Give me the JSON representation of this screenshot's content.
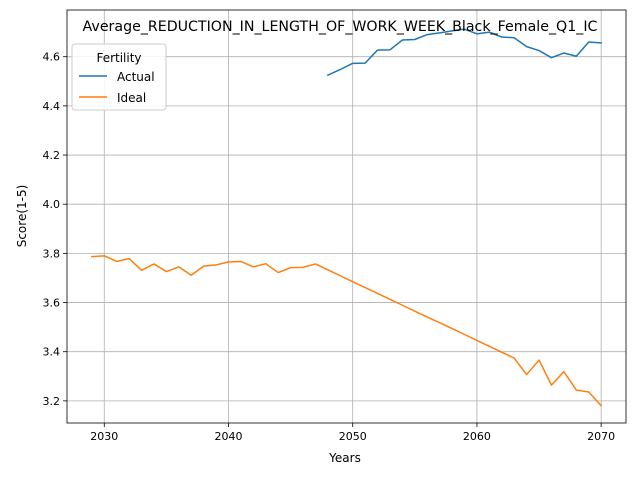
{
  "chart_data": {
    "type": "line",
    "title": "Average_REDUCTION_IN_LENGTH_OF_WORK_WEEK_Black_Female_Q1_IC",
    "xlabel": "Years",
    "ylabel": "Score(1-5)",
    "xlim": [
      2027,
      2072
    ],
    "ylim": [
      3.11,
      4.79
    ],
    "xticks": [
      2030,
      2040,
      2050,
      2060,
      2070
    ],
    "yticks": [
      3.2,
      3.4,
      3.6,
      3.8,
      4.0,
      4.2,
      4.4,
      4.6
    ],
    "grid": true,
    "legend": {
      "title": "Fertility",
      "position": "top-left"
    },
    "series": [
      {
        "name": "Actual",
        "color": "#1f77b4",
        "x": [
          2048,
          2049,
          2050,
          2051,
          2052,
          2053,
          2054,
          2055,
          2056,
          2057,
          2058,
          2059,
          2060,
          2061,
          2062,
          2063,
          2064,
          2065,
          2066,
          2067,
          2068,
          2069,
          2070
        ],
        "y": [
          4.525,
          4.548,
          4.573,
          4.574,
          4.627,
          4.628,
          4.668,
          4.67,
          4.69,
          4.697,
          4.705,
          4.712,
          4.693,
          4.7,
          4.68,
          4.677,
          4.641,
          4.625,
          4.596,
          4.615,
          4.602,
          4.66,
          4.656
        ]
      },
      {
        "name": "Ideal",
        "color": "#ff7f0e",
        "x": [
          2029,
          2030,
          2031,
          2032,
          2033,
          2034,
          2035,
          2036,
          2037,
          2038,
          2039,
          2040,
          2041,
          2042,
          2043,
          2044,
          2045,
          2046,
          2047,
          2048,
          2049,
          2050,
          2051,
          2052,
          2053,
          2054,
          2055,
          2056,
          2057,
          2058,
          2059,
          2060,
          2061,
          2062,
          2063,
          2064,
          2065,
          2066,
          2067,
          2068,
          2069,
          2070
        ],
        "y": [
          3.787,
          3.79,
          3.767,
          3.779,
          3.731,
          3.757,
          3.726,
          3.745,
          3.711,
          3.748,
          3.753,
          3.765,
          3.767,
          3.745,
          3.758,
          3.722,
          3.742,
          3.743,
          3.757,
          3.733,
          3.709,
          3.685,
          3.661,
          3.637,
          3.613,
          3.589,
          3.565,
          3.541,
          3.518,
          3.494,
          3.47,
          3.446,
          3.422,
          3.398,
          3.374,
          3.307,
          3.366,
          3.264,
          3.319,
          3.244,
          3.236,
          3.181
        ]
      }
    ]
  }
}
